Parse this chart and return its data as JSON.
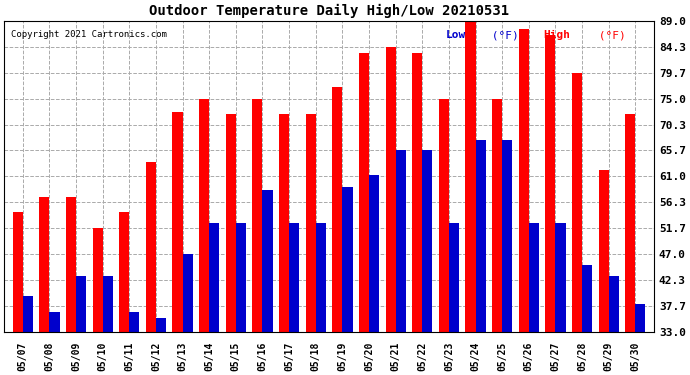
{
  "title": "Outdoor Temperature Daily High/Low 20210531",
  "copyright": "Copyright 2021 Cartronics.com",
  "dates": [
    "05/07",
    "05/08",
    "05/09",
    "05/10",
    "05/11",
    "05/12",
    "05/13",
    "05/14",
    "05/15",
    "05/16",
    "05/17",
    "05/18",
    "05/19",
    "05/20",
    "05/21",
    "05/22",
    "05/23",
    "05/24",
    "05/25",
    "05/26",
    "05/27",
    "05/28",
    "05/29",
    "05/30"
  ],
  "highs": [
    54.5,
    57.3,
    57.3,
    51.7,
    54.5,
    63.5,
    72.5,
    75.0,
    72.3,
    75.0,
    72.3,
    72.3,
    77.0,
    83.3,
    84.3,
    83.3,
    75.0,
    89.0,
    75.0,
    87.5,
    86.5,
    79.7,
    62.2,
    72.3
  ],
  "lows": [
    39.5,
    36.5,
    43.0,
    43.0,
    36.5,
    35.5,
    47.0,
    52.5,
    52.5,
    58.5,
    52.5,
    52.5,
    59.0,
    61.3,
    65.7,
    65.7,
    52.5,
    67.5,
    67.5,
    52.5,
    52.5,
    45.0,
    43.0,
    38.0
  ],
  "high_color": "#ff0000",
  "low_color": "#0000cc",
  "background_color": "#ffffff",
  "grid_color": "#aaaaaa",
  "yticks": [
    33.0,
    37.7,
    42.3,
    47.0,
    51.7,
    56.3,
    61.0,
    65.7,
    70.3,
    75.0,
    79.7,
    84.3,
    89.0
  ],
  "ymin": 33.0,
  "ymax": 89.0,
  "bar_width": 0.38,
  "figwidth": 6.9,
  "figheight": 3.75,
  "dpi": 100
}
